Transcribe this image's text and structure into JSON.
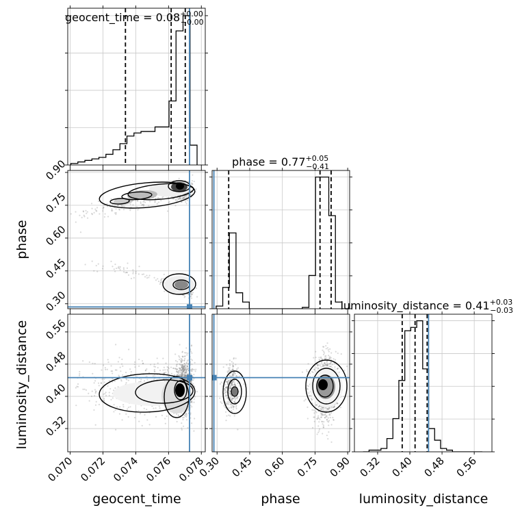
{
  "chart_data": {
    "type": "corner",
    "parameters": [
      "geocent_time",
      "phase",
      "luminosity_distance"
    ],
    "colors": {
      "truth": "#4682b4",
      "hist": "#000000",
      "grid": "#c8c8c8",
      "quantile": "#000000",
      "points": "#666666"
    },
    "grid": true,
    "titles": {
      "geocent_time": {
        "name": "geocent_time",
        "value": "0.08",
        "plus": "+0.00",
        "minus": "−0.00"
      },
      "phase": {
        "name": "phase",
        "value": "0.77",
        "plus": "+0.05",
        "minus": "−0.41"
      },
      "luminosity_distance": {
        "name": "luminosity_distance",
        "value": "0.41",
        "plus": "+0.03",
        "minus": "−0.03"
      }
    },
    "axis_labels": {
      "geocent_time": "geocent_time",
      "phase": "phase",
      "luminosity_distance": "luminosity_distance"
    },
    "ranges": {
      "geocent_time": [
        0.06985,
        0.07824
      ],
      "phase": [
        0.2773,
        0.909
      ],
      "luminosity_distance": [
        0.2623,
        0.604
      ]
    },
    "ticks": {
      "geocent_time": [
        {
          "v": 0.07,
          "label": "0.070"
        },
        {
          "v": 0.072,
          "label": "0.072"
        },
        {
          "v": 0.074,
          "label": "0.074"
        },
        {
          "v": 0.076,
          "label": "0.076"
        },
        {
          "v": 0.078,
          "label": "0.078"
        }
      ],
      "phase": [
        {
          "v": 0.3,
          "label": "0.30"
        },
        {
          "v": 0.45,
          "label": "0.45"
        },
        {
          "v": 0.6,
          "label": "0.60"
        },
        {
          "v": 0.75,
          "label": "0.75"
        },
        {
          "v": 0.9,
          "label": "0.90"
        }
      ],
      "luminosity_distance": [
        {
          "v": 0.32,
          "label": "0.32"
        },
        {
          "v": 0.4,
          "label": "0.40"
        },
        {
          "v": 0.48,
          "label": "0.48"
        },
        {
          "v": 0.56,
          "label": "0.56"
        }
      ]
    },
    "truths": {
      "geocent_time": 0.07728,
      "phase": 0.2855,
      "luminosity_distance": 0.4465
    },
    "quantiles": {
      "geocent_time": [
        0.07337,
        0.07616,
        0.07702
      ],
      "phase": [
        0.3535,
        0.773,
        0.824
      ],
      "luminosity_distance": [
        0.381,
        0.413,
        0.443
      ]
    },
    "histograms": {
      "geocent_time": {
        "range": [
          0.07004,
          0.07774
        ],
        "counts": [
          1,
          2,
          3,
          4,
          5,
          7,
          10,
          14,
          19,
          21,
          22,
          22,
          25,
          25,
          42,
          88,
          98,
          13
        ]
      },
      "phase": {
        "range": [
          0.2958,
          0.9046
        ],
        "counts": [
          2,
          16,
          57,
          12,
          5,
          0,
          0,
          0,
          0,
          0,
          0,
          0,
          0,
          1,
          25,
          99,
          99,
          70,
          5,
          0
        ]
      },
      "luminosity_distance": {
        "range": [
          0.2838,
          0.5801
        ],
        "counts": [
          0,
          1,
          1,
          2,
          8,
          20,
          43,
          73,
          75,
          79,
          50,
          14,
          7,
          2,
          1,
          0,
          0,
          0,
          0,
          0
        ]
      }
    },
    "hist_peaks": {
      "geocent_time": 98,
      "phase": 99,
      "luminosity_distance": 79
    }
  }
}
